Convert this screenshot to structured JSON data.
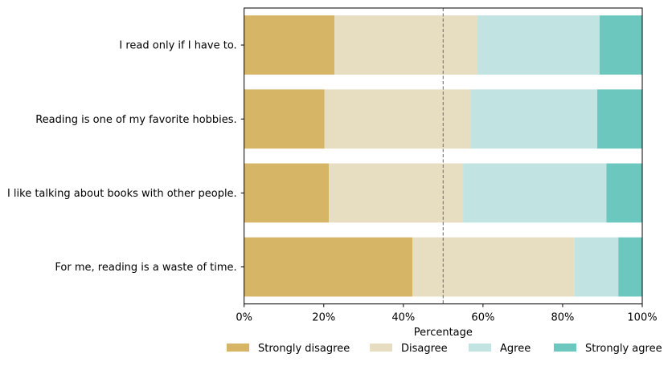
{
  "chart_data": {
    "type": "bar",
    "orientation": "horizontal",
    "stacked": true,
    "xlabel": "Percentage",
    "ylabel": "",
    "xlim": [
      0,
      100
    ],
    "xticks": [
      "0%",
      "20%",
      "40%",
      "60%",
      "80%",
      "100%"
    ],
    "xtick_values": [
      0,
      20,
      40,
      60,
      80,
      100
    ],
    "reference_line": {
      "value": 50,
      "style": "dashed",
      "color": "#808080"
    },
    "categories": [
      "I read only if I have to.",
      "Reading is one of my favorite hobbies.",
      "I like talking about books with other people.",
      "For me, reading is a waste of time."
    ],
    "series": [
      {
        "name": "Strongly disagree",
        "color": "#d6b566",
        "values": [
          22.7,
          20.2,
          21.3,
          42.3
        ]
      },
      {
        "name": "Disagree",
        "color": "#e7ddc1",
        "values": [
          35.9,
          36.7,
          33.7,
          40.6
        ]
      },
      {
        "name": "Agree",
        "color": "#c1e3e1",
        "values": [
          30.7,
          31.8,
          36.0,
          11.1
        ]
      },
      {
        "name": "Strongly agree",
        "color": "#6cc7bf",
        "values": [
          10.7,
          11.3,
          9.0,
          6.0
        ]
      }
    ],
    "legend": "bottom",
    "grid": false
  }
}
